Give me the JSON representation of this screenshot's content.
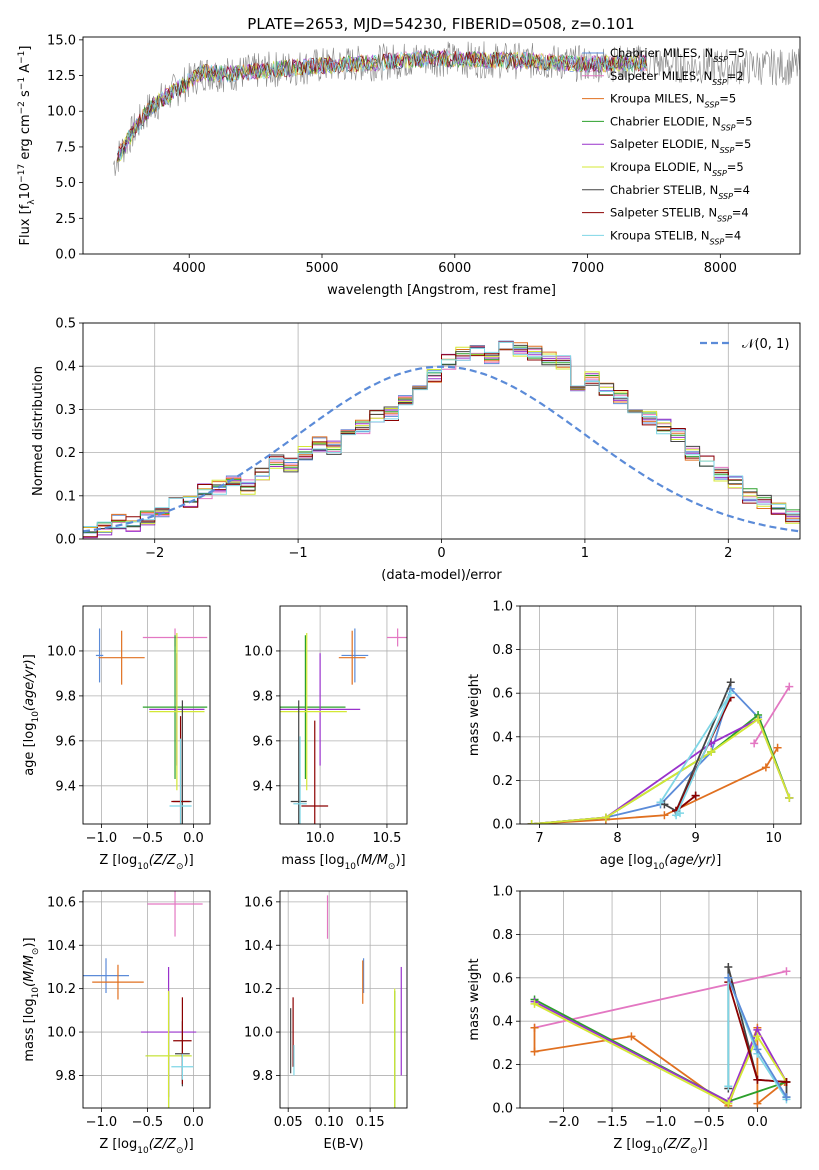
{
  "colors": {
    "c_miles": "#5b8bd8",
    "s_miles": "#e377c2",
    "k_miles": "#e07020",
    "c_elodie": "#2ca02c",
    "s_elodie": "#9932cc",
    "k_elodie": "#d4e835",
    "c_stelib": "#444444",
    "s_stelib": "#8b0000",
    "k_stelib": "#7fd6e6",
    "grid": "#b0b0b0",
    "gauss": "#5b8bd8"
  },
  "figure_title": "PLATE=2653, MJD=54230, FIBERID=0508, z=0.101",
  "chart_data": [
    {
      "type": "line",
      "title": "PLATE=2653, MJD=54230, FIBERID=0508, z=0.101",
      "xlabel": "wavelength [Angstrom, rest frame]",
      "ylabel_main": "Flux [f",
      "ylabel_units": "10",
      "ylabel_rest": " erg cm",
      "xlim": [
        3200,
        8600
      ],
      "ylim": [
        0,
        15.2
      ],
      "xticks": [
        "4000",
        "5000",
        "6000",
        "7000",
        "8000"
      ],
      "yticks": [
        "0.0",
        "2.5",
        "5.0",
        "7.5",
        "10.0",
        "12.5",
        "15.0"
      ],
      "legend_loc": "right",
      "series": [
        {
          "name": "Chabrier MILES, N",
          "sub": "SSP",
          "suffix": "=5",
          "color": "c_miles"
        },
        {
          "name": "Salpeter MILES, N",
          "sub": "SSP",
          "suffix": "=2",
          "color": "s_miles"
        },
        {
          "name": "Kroupa MILES, N",
          "sub": "SSP",
          "suffix": "=5",
          "color": "k_miles"
        },
        {
          "name": "Chabrier ELODIE, N",
          "sub": "SSP",
          "suffix": "=5",
          "color": "c_elodie"
        },
        {
          "name": "Salpeter ELODIE, N",
          "sub": "SSP",
          "suffix": "=5",
          "color": "s_elodie"
        },
        {
          "name": "Kroupa ELODIE, N",
          "sub": "SSP",
          "suffix": "=5",
          "color": "k_elodie"
        },
        {
          "name": "Chabrier STELIB, N",
          "sub": "SSP",
          "suffix": "=4",
          "color": "c_stelib"
        },
        {
          "name": "Salpeter STELIB, N",
          "sub": "SSP",
          "suffix": "=4",
          "color": "s_stelib"
        },
        {
          "name": "Kroupa STELIB, N",
          "sub": "SSP",
          "suffix": "=4",
          "color": "k_stelib"
        }
      ],
      "spectrum_anchor": {
        "x": [
          3450,
          3550,
          3700,
          3900,
          4100,
          4300,
          4600,
          5000,
          5400,
          5800,
          6200,
          6600,
          7000,
          7400,
          7800,
          8200
        ],
        "y": [
          6.6,
          8.2,
          10.2,
          11.5,
          12.7,
          12.6,
          12.9,
          13.2,
          13.4,
          13.7,
          13.6,
          13.5,
          13.3,
          13.4,
          13.2,
          13.1
        ]
      }
    },
    {
      "type": "bar",
      "xlabel": "(data-model)/error",
      "ylabel": "Normed distribution",
      "xlim": [
        -2.5,
        2.5
      ],
      "ylim": [
        0,
        0.5
      ],
      "xticks": [
        "−2",
        "−1",
        "0",
        "1",
        "2"
      ],
      "yticks": [
        "0.0",
        "0.1",
        "0.2",
        "0.3",
        "0.4",
        "0.5"
      ],
      "legend": "𝒩(0, 1)",
      "bin_width": 0.1,
      "bin_start": -2.5,
      "density": [
        0.02,
        0.025,
        0.04,
        0.035,
        0.05,
        0.06,
        0.08,
        0.09,
        0.11,
        0.12,
        0.13,
        0.12,
        0.15,
        0.18,
        0.17,
        0.2,
        0.22,
        0.21,
        0.24,
        0.26,
        0.28,
        0.29,
        0.32,
        0.35,
        0.38,
        0.41,
        0.43,
        0.44,
        0.42,
        0.45,
        0.44,
        0.43,
        0.42,
        0.41,
        0.36,
        0.37,
        0.35,
        0.33,
        0.3,
        0.28,
        0.26,
        0.24,
        0.2,
        0.18,
        0.15,
        0.13,
        0.1,
        0.085,
        0.07,
        0.05,
        0.04,
        0.035,
        0.03,
        0.025,
        0.02
      ]
    },
    {
      "type": "scatter",
      "xlabel": "Z [log",
      "xlabel_tail": "(Z/Z",
      "ylabel": "age  [log",
      "xlim": [
        -1.2,
        0.18
      ],
      "ylim": [
        9.23,
        10.2
      ],
      "xticks": [
        "−1.0",
        "−0.5",
        "0.0"
      ],
      "yticks": [
        "9.4",
        "9.6",
        "9.8",
        "10.0"
      ],
      "points": [
        {
          "x": -1.02,
          "y": 9.98,
          "xe": 0.04,
          "ye": 0.12,
          "color": "c_miles"
        },
        {
          "x": -0.2,
          "y": 10.06,
          "xe": 0.35,
          "ye": 0.04,
          "color": "s_miles"
        },
        {
          "x": -0.78,
          "y": 9.97,
          "xe": 0.25,
          "ye": 0.12,
          "color": "k_miles"
        },
        {
          "x": -0.2,
          "y": 9.75,
          "xe": 0.35,
          "ye": 0.32,
          "color": "c_elodie"
        },
        {
          "x": -0.18,
          "y": 9.74,
          "xe": 0.3,
          "ye": 0.25,
          "color": "s_elodie"
        },
        {
          "x": -0.18,
          "y": 9.73,
          "xe": 0.3,
          "ye": 0.35,
          "color": "k_elodie"
        },
        {
          "x": -0.12,
          "y": 9.33,
          "xe": 0.1,
          "ye": 0.45,
          "color": "c_stelib"
        },
        {
          "x": -0.14,
          "y": 9.33,
          "xe": 0.1,
          "ye": 0.38,
          "color": "s_stelib"
        },
        {
          "x": -0.14,
          "y": 9.31,
          "xe": 0.12,
          "ye": 0.3,
          "color": "k_stelib"
        }
      ]
    },
    {
      "type": "scatter",
      "xlabel": "mass [log",
      "xlim": [
        9.7,
        10.65
      ],
      "ylim": [
        9.23,
        10.2
      ],
      "xticks": [
        "10.0",
        "10.5"
      ],
      "yticks": [
        "9.4",
        "9.6",
        "9.8",
        "10.0"
      ],
      "points": [
        {
          "x": 10.26,
          "y": 9.98,
          "xe": 0.1,
          "ye": 0.12,
          "color": "c_miles"
        },
        {
          "x": 10.58,
          "y": 10.06,
          "xe": 0.08,
          "ye": 0.04,
          "color": "s_miles"
        },
        {
          "x": 10.24,
          "y": 9.97,
          "xe": 0.1,
          "ye": 0.12,
          "color": "k_miles"
        },
        {
          "x": 9.89,
          "y": 9.75,
          "xe": 0.3,
          "ye": 0.32,
          "color": "c_elodie"
        },
        {
          "x": 10.0,
          "y": 9.74,
          "xe": 0.3,
          "ye": 0.25,
          "color": "s_elodie"
        },
        {
          "x": 9.9,
          "y": 9.73,
          "xe": 0.3,
          "ye": 0.35,
          "color": "k_elodie"
        },
        {
          "x": 9.84,
          "y": 9.33,
          "xe": 0.06,
          "ye": 0.45,
          "color": "c_stelib"
        },
        {
          "x": 9.96,
          "y": 9.31,
          "xe": 0.1,
          "ye": 0.38,
          "color": "s_stelib"
        },
        {
          "x": 9.85,
          "y": 9.32,
          "xe": 0.05,
          "ye": 0.3,
          "color": "k_stelib"
        }
      ]
    },
    {
      "type": "line",
      "xlabel": "age  [log",
      "ylabel": "mass weight",
      "xlim": [
        6.75,
        10.35
      ],
      "ylim": [
        0,
        1
      ],
      "xticks": [
        "7",
        "8",
        "9",
        "10"
      ],
      "yticks": [
        "0.0",
        "0.2",
        "0.4",
        "0.6",
        "0.8",
        "1.0"
      ],
      "series": [
        {
          "color": "c_miles",
          "x": [
            6.9,
            7.85,
            8.55,
            9.2,
            9.45,
            9.8,
            10.2
          ],
          "y": [
            0.0,
            0.03,
            0.09,
            0.33,
            0.62,
            0.49,
            0.12
          ]
        },
        {
          "color": "s_miles",
          "x": [
            9.75,
            10.2
          ],
          "y": [
            0.37,
            0.63
          ]
        },
        {
          "color": "k_miles",
          "x": [
            6.9,
            7.85,
            8.6,
            9.9,
            10.05
          ],
          "y": [
            0.0,
            0.02,
            0.04,
            0.26,
            0.35
          ]
        },
        {
          "color": "c_elodie",
          "x": [
            6.9,
            7.85,
            9.2,
            9.8,
            10.2
          ],
          "y": [
            0.0,
            0.03,
            0.33,
            0.5,
            0.12
          ]
        },
        {
          "color": "s_elodie",
          "x": [
            6.9,
            7.85,
            9.2,
            9.8,
            10.2
          ],
          "y": [
            0.0,
            0.03,
            0.37,
            0.48,
            0.12
          ]
        },
        {
          "color": "k_elodie",
          "x": [
            6.9,
            7.85,
            9.2,
            9.8,
            10.2
          ],
          "y": [
            0.0,
            0.03,
            0.33,
            0.48,
            0.12
          ]
        },
        {
          "color": "c_stelib",
          "x": [
            8.6,
            8.75,
            9.45,
            8.75,
            9.0
          ],
          "y": [
            0.09,
            0.06,
            0.65,
            0.06,
            0.13
          ]
        },
        {
          "color": "s_stelib",
          "x": [
            8.75,
            9.45,
            8.75,
            9.0
          ],
          "y": [
            0.06,
            0.58,
            0.06,
            0.13
          ]
        },
        {
          "color": "k_stelib",
          "x": [
            8.55,
            9.45,
            8.75,
            8.8
          ],
          "y": [
            0.1,
            0.6,
            0.04,
            0.05
          ]
        }
      ]
    },
    {
      "type": "scatter",
      "xlabel": "Z [log",
      "ylabel": "mass [log",
      "xlim": [
        -1.2,
        0.18
      ],
      "ylim": [
        9.65,
        10.65
      ],
      "xticks": [
        "−1.0",
        "−0.5",
        "0.0"
      ],
      "yticks": [
        "9.8",
        "10.0",
        "10.2",
        "10.4",
        "10.6"
      ],
      "points": [
        {
          "x": -0.95,
          "y": 10.26,
          "xe": 0.25,
          "ye": 0.08,
          "color": "c_miles"
        },
        {
          "x": -0.2,
          "y": 10.59,
          "xe": 0.3,
          "ye": 0.15,
          "color": "s_miles"
        },
        {
          "x": -0.82,
          "y": 10.23,
          "xe": 0.28,
          "ye": 0.08,
          "color": "k_miles"
        },
        {
          "x": -0.27,
          "y": 9.89,
          "xe": 0.25,
          "ye": 0.3,
          "color": "c_elodie"
        },
        {
          "x": -0.27,
          "y": 10.0,
          "xe": 0.3,
          "ye": 0.3,
          "color": "s_elodie"
        },
        {
          "x": -0.27,
          "y": 9.89,
          "xe": 0.25,
          "ye": 0.3,
          "color": "k_elodie"
        },
        {
          "x": -0.12,
          "y": 9.9,
          "xe": 0.08,
          "ye": 0.15,
          "color": "c_stelib"
        },
        {
          "x": -0.12,
          "y": 9.96,
          "xe": 0.1,
          "ye": 0.2,
          "color": "s_stelib"
        },
        {
          "x": -0.12,
          "y": 9.84,
          "xe": 0.12,
          "ye": 0.06,
          "color": "k_stelib"
        }
      ]
    },
    {
      "type": "scatter",
      "xlabel": "E(B-V)",
      "xlim": [
        0.04,
        0.195
      ],
      "ylim": [
        9.65,
        10.65
      ],
      "xticks": [
        "0.05",
        "0.10",
        "0.15"
      ],
      "yticks": [
        "9.8",
        "10.0",
        "10.2",
        "10.4",
        "10.6"
      ],
      "points": [
        {
          "x": 0.142,
          "y": 10.26,
          "xe": 0,
          "ye": 0.08,
          "color": "c_miles"
        },
        {
          "x": 0.098,
          "y": 10.53,
          "xe": 0,
          "ye": 0.1,
          "color": "s_miles"
        },
        {
          "x": 0.141,
          "y": 10.23,
          "xe": 0,
          "ye": 0.1,
          "color": "k_miles"
        },
        {
          "x": 0.18,
          "y": 9.89,
          "xe": 0,
          "ye": 0.3,
          "color": "c_elodie"
        },
        {
          "x": 0.188,
          "y": 10.05,
          "xe": 0,
          "ye": 0.25,
          "color": "s_elodie"
        },
        {
          "x": 0.18,
          "y": 9.87,
          "xe": 0,
          "ye": 0.33,
          "color": "k_elodie"
        },
        {
          "x": 0.053,
          "y": 9.96,
          "xe": 0,
          "ye": 0.15,
          "color": "c_stelib"
        },
        {
          "x": 0.056,
          "y": 10.0,
          "xe": 0,
          "ye": 0.16,
          "color": "s_stelib"
        },
        {
          "x": 0.057,
          "y": 9.87,
          "xe": 0,
          "ye": 0.07,
          "color": "k_stelib"
        }
      ]
    },
    {
      "type": "line",
      "xlabel": "Z [log",
      "ylabel": "mass weight",
      "xlim": [
        -2.45,
        0.45
      ],
      "ylim": [
        0,
        1
      ],
      "xticks": [
        "−2.0",
        "−1.5",
        "−1.0",
        "−0.5",
        "0.0"
      ],
      "yticks": [
        "0.0",
        "0.2",
        "0.4",
        "0.6",
        "0.8",
        "1.0"
      ],
      "series": [
        {
          "color": "s_miles",
          "x": [
            -2.3,
            0.3
          ],
          "y": [
            0.37,
            0.63
          ]
        },
        {
          "color": "k_miles",
          "x": [
            -2.3,
            -2.3,
            -1.3,
            -0.3,
            0.0,
            0.0,
            0.28
          ],
          "y": [
            0.37,
            0.26,
            0.33,
            0.01,
            0.37,
            0.02,
            0.12
          ]
        },
        {
          "color": "c_elodie",
          "x": [
            -2.3,
            -0.3,
            0.3
          ],
          "y": [
            0.5,
            0.03,
            0.12
          ]
        },
        {
          "color": "s_elodie",
          "x": [
            -2.3,
            -0.3,
            0.0,
            0.3
          ],
          "y": [
            0.49,
            0.03,
            0.36,
            0.12
          ]
        },
        {
          "color": "k_elodie",
          "x": [
            -2.3,
            -0.3,
            0.0,
            0.3
          ],
          "y": [
            0.48,
            0.02,
            0.33,
            0.12
          ]
        },
        {
          "color": "c_stelib",
          "x": [
            -0.3,
            -0.3,
            0.0,
            0.3,
            0.3
          ],
          "y": [
            0.09,
            0.65,
            0.13,
            0.12,
            0.05
          ]
        },
        {
          "color": "s_stelib",
          "x": [
            -0.3,
            0.0,
            0.3
          ],
          "y": [
            0.58,
            0.13,
            0.12
          ]
        },
        {
          "color": "k_stelib",
          "x": [
            -0.3,
            -0.3,
            0.0,
            0.3
          ],
          "y": [
            0.1,
            0.6,
            0.25,
            0.04
          ]
        },
        {
          "color": "c_miles",
          "x": [
            -0.3,
            0.0,
            0.3
          ],
          "y": [
            0.6,
            0.27,
            0.05
          ]
        }
      ]
    }
  ]
}
